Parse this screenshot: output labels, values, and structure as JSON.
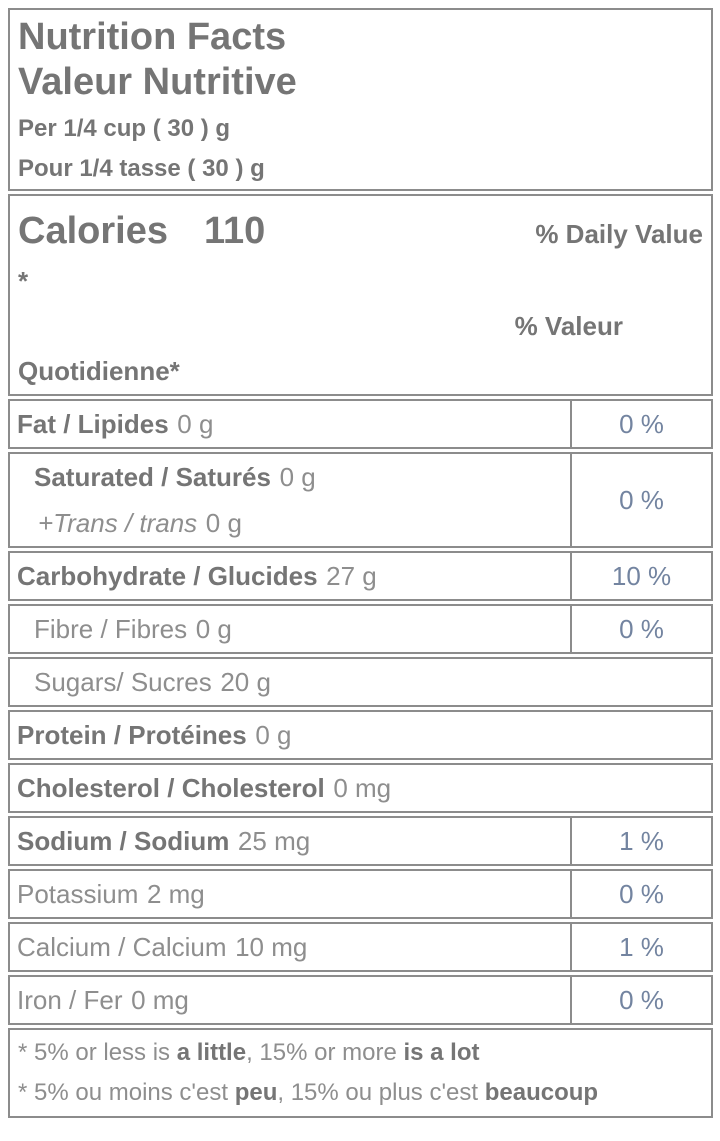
{
  "colors": {
    "border": "#8c8c8c",
    "bold": "#757575",
    "regular": "#8e8e8e",
    "percent": "#7384a0"
  },
  "header": {
    "title_en": "Nutrition Facts",
    "title_fr": "Valeur Nutritive",
    "serving_en": "Per 1/4 cup ( 30 ) g",
    "serving_fr": "Pour 1/4 tasse ( 30 ) g"
  },
  "calories": {
    "word": "Calories",
    "value": "110"
  },
  "dv_header": {
    "en_line1": "% Daily Value",
    "en_line2": "*",
    "fr_line1": "% Valeur",
    "fr_line2": "Quotidienne*"
  },
  "rows": [
    {
      "name": "fat",
      "label": "Fat / Lipides",
      "amount": "0 g",
      "dv": "0 %"
    },
    {
      "name": "saturated-trans",
      "label": "Saturated / Saturés",
      "amount": "0 g",
      "label2": "+Trans / trans",
      "amount2": "0 g",
      "dv": "0 %"
    },
    {
      "name": "carbohydrate",
      "label": "Carbohydrate / Glucides",
      "amount": "27 g",
      "dv": "10 %"
    },
    {
      "name": "fibre",
      "label": "Fibre / Fibres",
      "amount": "0 g",
      "dv": "0 %"
    },
    {
      "name": "sugars",
      "label": "Sugars/ Sucres",
      "amount": "20 g"
    },
    {
      "name": "protein",
      "label": "Protein / Protéines",
      "amount": "0 g"
    },
    {
      "name": "cholesterol",
      "label": "Cholesterol / Cholesterol",
      "amount": "0 mg"
    },
    {
      "name": "sodium",
      "label": "Sodium / Sodium",
      "amount": "25 mg",
      "dv": "1 %"
    },
    {
      "name": "potassium",
      "label": "Potassium",
      "amount": "2 mg",
      "dv": "0 %"
    },
    {
      "name": "calcium",
      "label": "Calcium / Calcium",
      "amount": "10 mg",
      "dv": "1 %"
    },
    {
      "name": "iron",
      "label": "Iron / Fer",
      "amount": "0 mg",
      "dv": "0 %"
    }
  ],
  "footnote_en": {
    "s1": "* 5% or less is ",
    "s2": "a little",
    "s3": ", 15% or more ",
    "s4": "is a lot"
  },
  "footnote_fr": {
    "s1": "* 5% ou moins c'est ",
    "s2": "peu",
    "s3": ", 15% ou plus c'est ",
    "s4": "beaucoup"
  }
}
